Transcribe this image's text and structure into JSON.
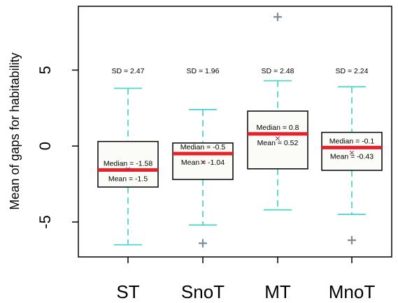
{
  "chart_data": {
    "type": "boxplot",
    "title": "",
    "xlabel": "",
    "ylabel": "Mean of gaps for habitability",
    "ylim": [
      -7.3,
      9.2
    ],
    "y_ticks": [
      "-5",
      "0",
      "5"
    ],
    "y_tick_values": [
      -5,
      0,
      5
    ],
    "grid": false,
    "colors": {
      "whisker": "#4fd6cf",
      "median": "#e8202a",
      "mean_marker": "#a0306a",
      "outlier": "#7a8b9c",
      "box_fill": "#fbfcf8",
      "frame": "#000000"
    },
    "categories": [
      "ST",
      "SnoT",
      "MT",
      "MnoT"
    ],
    "boxes": [
      {
        "category": "ST",
        "whisker_low": -6.5,
        "q1": -2.7,
        "median": -1.58,
        "q3": 0.3,
        "whisker_high": 3.8,
        "mean": -1.5,
        "sd": 2.47,
        "outliers": [],
        "sd_label": "SD = 2.47",
        "median_label": "Median = -1.58",
        "mean_label": "Mean = -1.5"
      },
      {
        "category": "SnoT",
        "whisker_low": -5.2,
        "q1": -2.2,
        "median": -0.5,
        "q3": 0.2,
        "whisker_high": 2.4,
        "mean": -1.04,
        "sd": 1.96,
        "outliers": [
          -6.4
        ],
        "sd_label": "SD = 1.96",
        "median_label": "Median = -0.5",
        "mean_label": "Mean = -1.04"
      },
      {
        "category": "MT",
        "whisker_low": -4.2,
        "q1": -1.5,
        "median": 0.8,
        "q3": 2.3,
        "whisker_high": 4.3,
        "mean": 0.52,
        "sd": 2.48,
        "outliers": [
          8.5
        ],
        "sd_label": "SD = 2.48",
        "median_label": "Median = 0.8",
        "mean_label": "Mean = 0.52"
      },
      {
        "category": "MnoT",
        "whisker_low": -4.5,
        "q1": -1.6,
        "median": -0.1,
        "q3": 0.9,
        "whisker_high": 3.9,
        "mean": -0.43,
        "sd": 2.24,
        "outliers": [
          -6.2
        ],
        "sd_label": "SD = 2.24",
        "median_label": "Median = -0.1",
        "mean_label": "Mean = -0.43"
      }
    ]
  }
}
